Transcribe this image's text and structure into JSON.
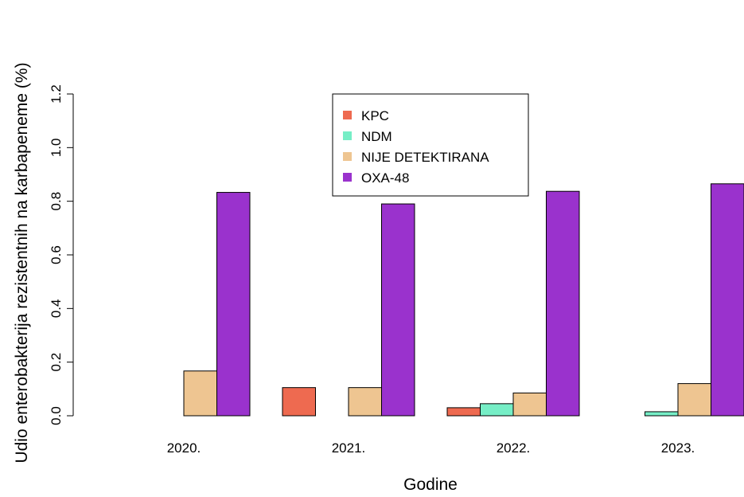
{
  "chart_data": {
    "type": "bar",
    "categories": [
      "2020.",
      "2021.",
      "2022.",
      "2023."
    ],
    "series": [
      {
        "name": "KPC",
        "color": "#EE6A50",
        "values": [
          0,
          0.105,
          0.03,
          0
        ]
      },
      {
        "name": "NDM",
        "color": "#76EEC6",
        "values": [
          0,
          0,
          0.045,
          0.015
        ]
      },
      {
        "name": "NIJE DETEKTIRANA",
        "color": "#EEC591",
        "values": [
          0.167,
          0.105,
          0.085,
          0.12
        ]
      },
      {
        "name": "OXA-48",
        "color": "#9A32CD",
        "values": [
          0.833,
          0.79,
          0.837,
          0.865
        ]
      }
    ],
    "xlabel": "Godine",
    "ylabel": "Udio enterobakterija rezistentnih na karbapeneme (%)",
    "ylim": [
      0,
      1.2
    ],
    "yticks": [
      "0.0",
      "0.2",
      "0.4",
      "0.6",
      "0.8",
      "1.0",
      "1.2"
    ],
    "grid": false,
    "legend_position": "top-center"
  }
}
